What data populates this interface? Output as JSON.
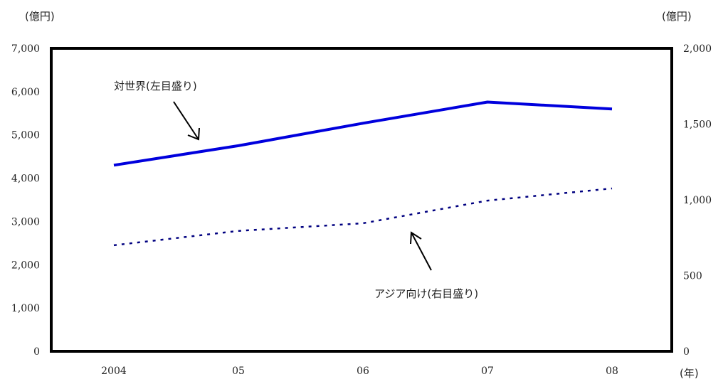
{
  "chart_data": {
    "type": "line",
    "categories": [
      "2004",
      "05",
      "06",
      "07",
      "08"
    ],
    "x_unit": "(年)",
    "y_left": {
      "unit": "(億円)",
      "lim": [
        0,
        7000
      ],
      "ticks": [
        "0",
        "1,000",
        "2,000",
        "3,000",
        "4,000",
        "5,000",
        "6,000",
        "7,000"
      ]
    },
    "y_right": {
      "unit": "(億円)",
      "lim": [
        0,
        2000
      ],
      "ticks": [
        "0",
        "500",
        "1,000",
        "1,500",
        "2,000"
      ]
    },
    "series": [
      {
        "name": "対世界(左目盛り)",
        "axis": "left",
        "style": "solid",
        "color": "#0000dd",
        "values": [
          4300,
          4750,
          5270,
          5760,
          5600
        ]
      },
      {
        "name": "アジア向け(右目盛り)",
        "axis": "right",
        "style": "dotted",
        "color": "#000080",
        "values": [
          700,
          795,
          845,
          995,
          1075
        ]
      }
    ],
    "grid": false,
    "legend": "annotations"
  }
}
